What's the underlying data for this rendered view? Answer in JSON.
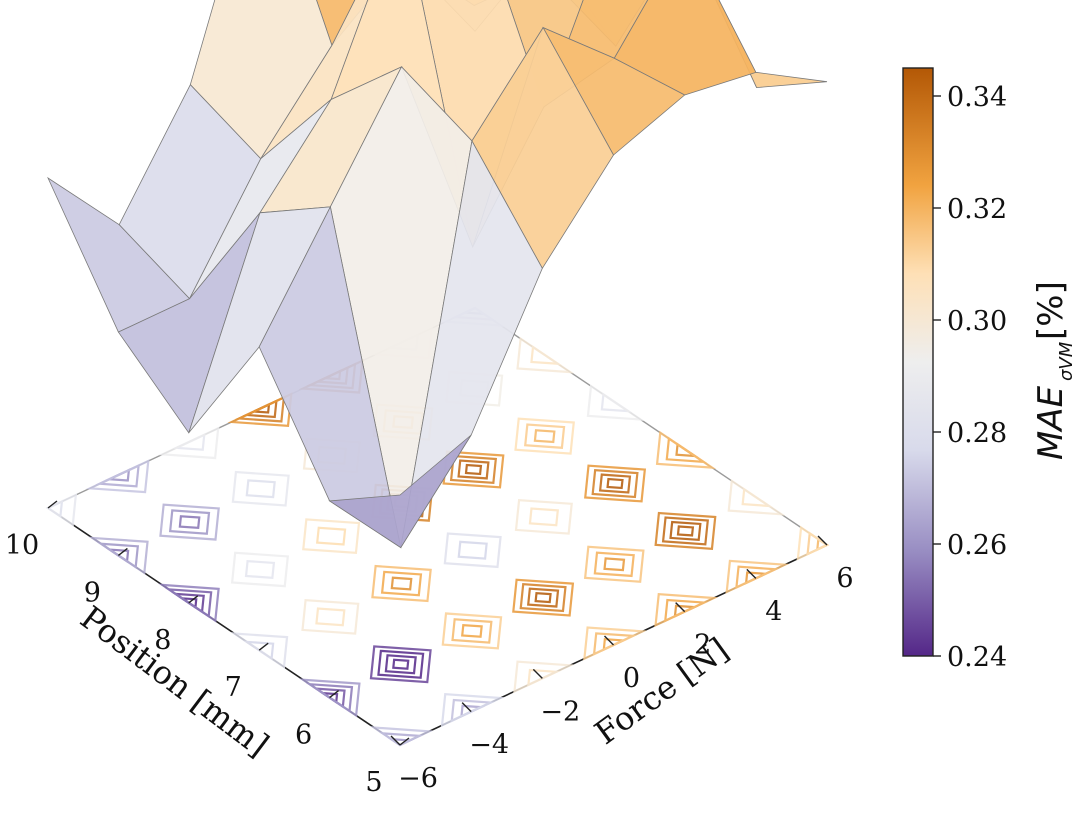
{
  "chart_data": {
    "type": "surface3d",
    "x_axis": {
      "label": "Force [N]",
      "ticks": [
        -6,
        -4,
        -2,
        0,
        2,
        4,
        6
      ],
      "tick_labels": [
        "−6",
        "−4",
        "−2",
        "0",
        "2",
        "4",
        "6"
      ],
      "range": [
        -6,
        6
      ]
    },
    "y_axis": {
      "label": "Position [mm]",
      "ticks": [
        5,
        6,
        7,
        8,
        9,
        10
      ],
      "tick_labels": [
        "5",
        "6",
        "7",
        "8",
        "9",
        "10"
      ],
      "range": [
        5,
        10
      ]
    },
    "z_axis": {
      "range": [
        0.24,
        0.345
      ]
    },
    "force_values": [
      -6,
      -4,
      -2,
      0,
      2,
      4,
      6
    ],
    "position_values": [
      5,
      6,
      7,
      8,
      9,
      10
    ],
    "z_values": [
      [
        0.27,
        0.275,
        0.3,
        0.315,
        0.32,
        0.318,
        0.31
      ],
      [
        0.26,
        0.245,
        0.315,
        0.33,
        0.318,
        0.335,
        0.3
      ],
      [
        0.28,
        0.3,
        0.32,
        0.28,
        0.3,
        0.33,
        0.32
      ],
      [
        0.255,
        0.29,
        0.305,
        0.335,
        0.33,
        0.31,
        0.29
      ],
      [
        0.265,
        0.265,
        0.285,
        0.3,
        0.31,
        0.295,
        0.3
      ],
      [
        0.285,
        0.27,
        0.29,
        0.33,
        0.345,
        0.295,
        0.275
      ]
    ],
    "colormap": {
      "name": "PuOr_r",
      "stops": [
        "#542788",
        "#998ec3",
        "#d8daeb",
        "#f0f0f0",
        "#fee0b6",
        "#f1a340",
        "#b35806"
      ]
    },
    "colorbar": {
      "label_main": "MAE",
      "label_sub": "σVM",
      "label_unit": "[%]",
      "ticks": [
        0.24,
        0.26,
        0.28,
        0.3,
        0.32,
        0.34
      ],
      "tick_labels": [
        "0.24",
        "0.26",
        "0.28",
        "0.30",
        "0.32",
        "0.34"
      ],
      "range": [
        0.24,
        0.345
      ]
    },
    "contour_projection": true
  }
}
